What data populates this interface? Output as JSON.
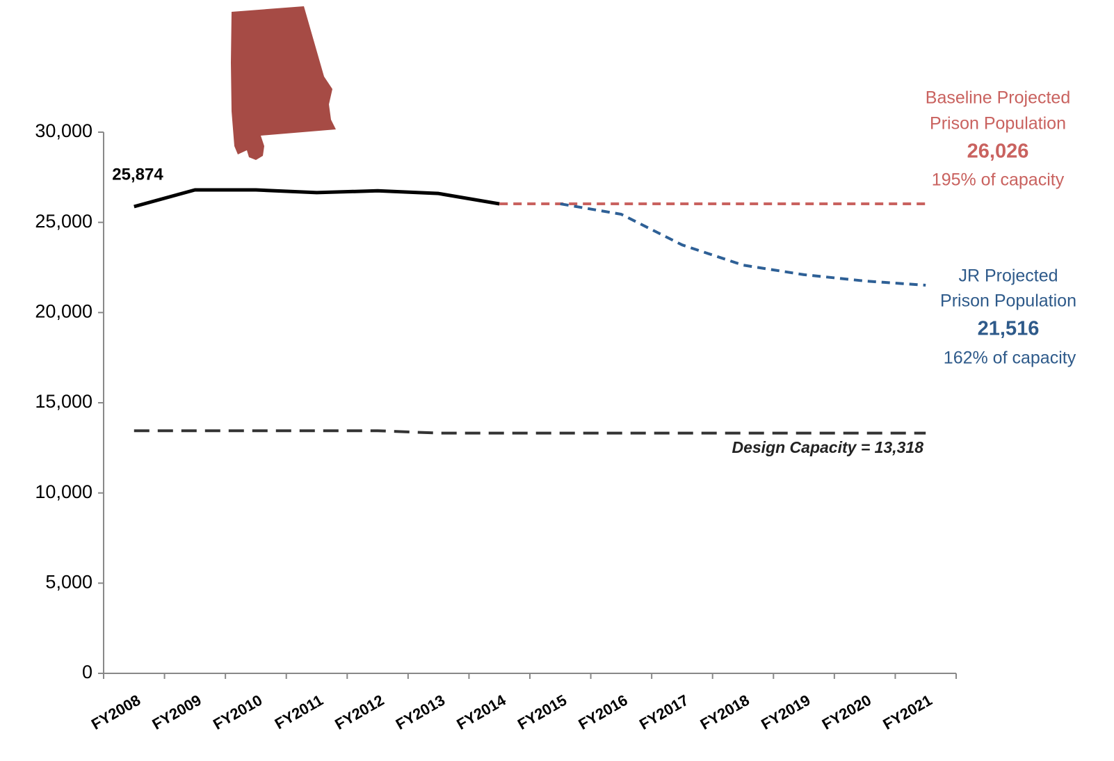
{
  "chart_data": {
    "type": "line",
    "categories": [
      "FY2008",
      "FY2009",
      "FY2010",
      "FY2011",
      "FY2012",
      "FY2013",
      "FY2014",
      "FY2015",
      "FY2016",
      "FY2017",
      "FY2018",
      "FY2019",
      "FY2020",
      "FY2021"
    ],
    "series": [
      {
        "color": "#000000",
        "dash": false,
        "values": [
          25874,
          26800,
          26800,
          26650,
          26750,
          26600,
          26026,
          null,
          null,
          null,
          null,
          null,
          null,
          null
        ],
        "value_labels": [
          "25,874",
          null,
          null,
          null,
          null,
          null,
          null,
          null,
          null,
          null,
          null,
          null,
          null,
          null
        ]
      },
      {
        "color": "#c9625f",
        "dash": true,
        "values": [
          null,
          null,
          null,
          null,
          null,
          null,
          26026,
          26026,
          26026,
          26026,
          26026,
          26026,
          26026,
          26026
        ],
        "value_labels": [
          null,
          null,
          null,
          null,
          null,
          null,
          null,
          null,
          null,
          null,
          null,
          null,
          null,
          "26,026"
        ]
      },
      {
        "color": "#2e6096",
        "dash": true,
        "values": [
          null,
          null,
          null,
          null,
          null,
          null,
          null,
          26026,
          25450,
          23750,
          22630,
          22100,
          21750,
          21516
        ],
        "value_labels": [
          null,
          null,
          null,
          null,
          null,
          null,
          null,
          null,
          null,
          null,
          null,
          null,
          null,
          "21,516"
        ]
      },
      {
        "color": "#333333",
        "dash": true,
        "values": [
          13450,
          13450,
          13450,
          13450,
          13450,
          13318,
          13318,
          13318,
          13318,
          13318,
          13318,
          13318,
          13318,
          13318
        ],
        "value_labels": [
          null,
          null,
          null,
          null,
          null,
          null,
          null,
          null,
          null,
          null,
          null,
          null,
          null,
          "Design Capacity = 13,318"
        ]
      }
    ],
    "annotations": [
      "Baseline Projected",
      "Prison Population",
      "195% of capacity",
      "JR Projected",
      "Prison Population",
      "162% of capacity"
    ],
    "ylim": [
      0,
      30000
    ],
    "yticks": [
      0,
      {
        "value": 5000,
        "label": "5,000"
      },
      {
        "value": 10000,
        "label": "10,000"
      },
      {
        "value": 15000,
        "label": "15,000"
      },
      {
        "value": 20000,
        "label": "20,000"
      },
      {
        "value": 25000,
        "label": "25,000"
      },
      {
        "value": 30000,
        "label": "30,000"
      }
    ],
    "grid": false
  }
}
